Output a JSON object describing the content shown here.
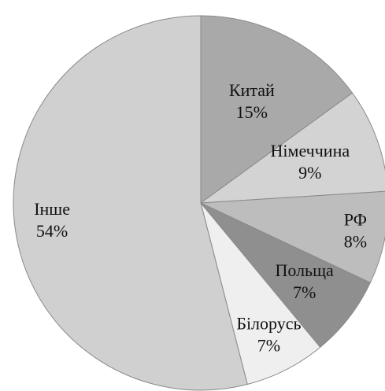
{
  "chart_data": {
    "type": "pie",
    "categories": [
      "Китай",
      "Німеччина",
      "РФ",
      "Польща",
      "Білорусь",
      "Інше"
    ],
    "values": [
      15,
      9,
      8,
      7,
      7,
      54
    ],
    "value_labels": [
      "15%",
      "9%",
      "8%",
      "7%",
      "7%",
      "54%"
    ],
    "colors": [
      "#a9a9a9",
      "#d3d3d3",
      "#bdbdbd",
      "#8f8f8f",
      "#efefef",
      "#d0d0d0"
    ]
  }
}
